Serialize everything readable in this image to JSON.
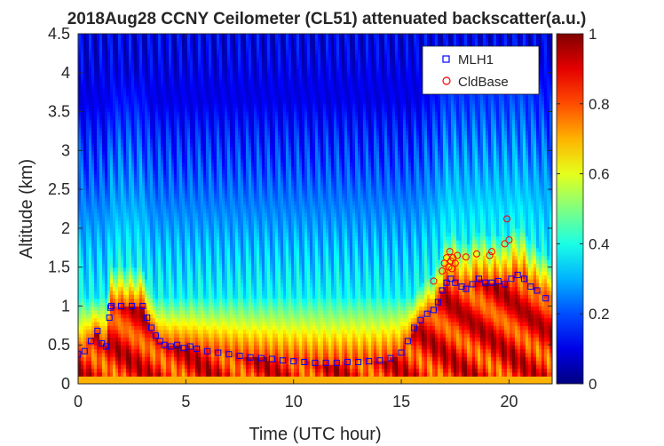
{
  "chart_data": {
    "type": "heatmap",
    "title": "2018Aug28 CCNY Ceilometer (CL51) attenuated backscatter(a.u.)",
    "xlabel": "Time (UTC hour)",
    "ylabel": "Altitude (km)",
    "xlim": [
      0,
      22
    ],
    "ylim": [
      0,
      4.5
    ],
    "x_ticks": [
      0,
      5,
      10,
      15,
      20
    ],
    "x_tick_labels": [
      "0",
      "5",
      "10",
      "15",
      "20"
    ],
    "y_ticks": [
      0,
      0.5,
      1,
      1.5,
      2,
      2.5,
      3,
      3.5,
      4,
      4.5
    ],
    "y_tick_labels": [
      "0",
      "0.5",
      "1",
      "1.5",
      "2",
      "2.5",
      "3",
      "3.5",
      "4",
      "4.5"
    ],
    "colorbar": {
      "colormap": "jet",
      "range": [
        0,
        1
      ],
      "ticks": [
        0,
        0.2,
        0.4,
        0.6,
        0.8,
        1
      ],
      "tick_labels": [
        "0",
        "0.2",
        "0.4",
        "0.6",
        "0.8",
        "1"
      ]
    },
    "legend": {
      "position": "top-right",
      "entries": [
        {
          "label": "MLH1",
          "marker": "square",
          "color": "#0000ff"
        },
        {
          "label": "CldBase",
          "marker": "circle",
          "color": "#ff0000"
        }
      ]
    },
    "series": [
      {
        "name": "MLH1",
        "x": [
          0,
          0.3,
          0.6,
          0.9,
          1.1,
          1.3,
          1.45,
          1.5,
          1.55,
          2.0,
          2.5,
          3.0,
          3.2,
          3.4,
          3.6,
          3.8,
          4.0,
          4.3,
          4.6,
          4.9,
          5.2,
          5.5,
          6.0,
          6.5,
          7.0,
          7.5,
          8.0,
          8.5,
          9.0,
          9.5,
          10.0,
          10.5,
          11.0,
          11.5,
          12.0,
          12.5,
          13.0,
          13.5,
          14.0,
          14.5,
          15.0,
          15.3,
          15.6,
          15.9,
          16.2,
          16.5,
          16.7,
          16.9,
          17.1,
          17.3,
          17.5,
          17.8,
          18.0,
          18.3,
          18.6,
          18.9,
          19.2,
          19.5,
          19.8,
          20.1,
          20.4,
          20.7,
          21.0,
          21.3,
          21.7
        ],
        "y": [
          0.38,
          0.42,
          0.55,
          0.68,
          0.52,
          0.48,
          0.85,
          0.98,
          1.0,
          1.0,
          1.0,
          1.0,
          0.85,
          0.72,
          0.62,
          0.55,
          0.5,
          0.48,
          0.5,
          0.46,
          0.48,
          0.45,
          0.42,
          0.4,
          0.38,
          0.36,
          0.34,
          0.33,
          0.32,
          0.3,
          0.29,
          0.28,
          0.27,
          0.27,
          0.27,
          0.28,
          0.28,
          0.29,
          0.3,
          0.33,
          0.4,
          0.55,
          0.72,
          0.82,
          0.9,
          0.95,
          1.05,
          1.2,
          1.3,
          1.35,
          1.3,
          1.25,
          1.22,
          1.28,
          1.35,
          1.3,
          1.3,
          1.32,
          1.28,
          1.35,
          1.4,
          1.35,
          1.25,
          1.2,
          1.1
        ]
      },
      {
        "name": "CldBase",
        "x": [
          16.5,
          16.9,
          17.0,
          17.1,
          17.2,
          17.25,
          17.3,
          17.35,
          17.4,
          17.5,
          17.6,
          18.0,
          18.5,
          19.1,
          19.2,
          19.8,
          19.9,
          20.0
        ],
        "y": [
          1.32,
          1.45,
          1.55,
          1.62,
          1.5,
          1.7,
          1.58,
          1.48,
          1.62,
          1.55,
          1.65,
          1.63,
          1.67,
          1.65,
          1.7,
          1.8,
          2.12,
          1.85
        ]
      }
    ]
  }
}
